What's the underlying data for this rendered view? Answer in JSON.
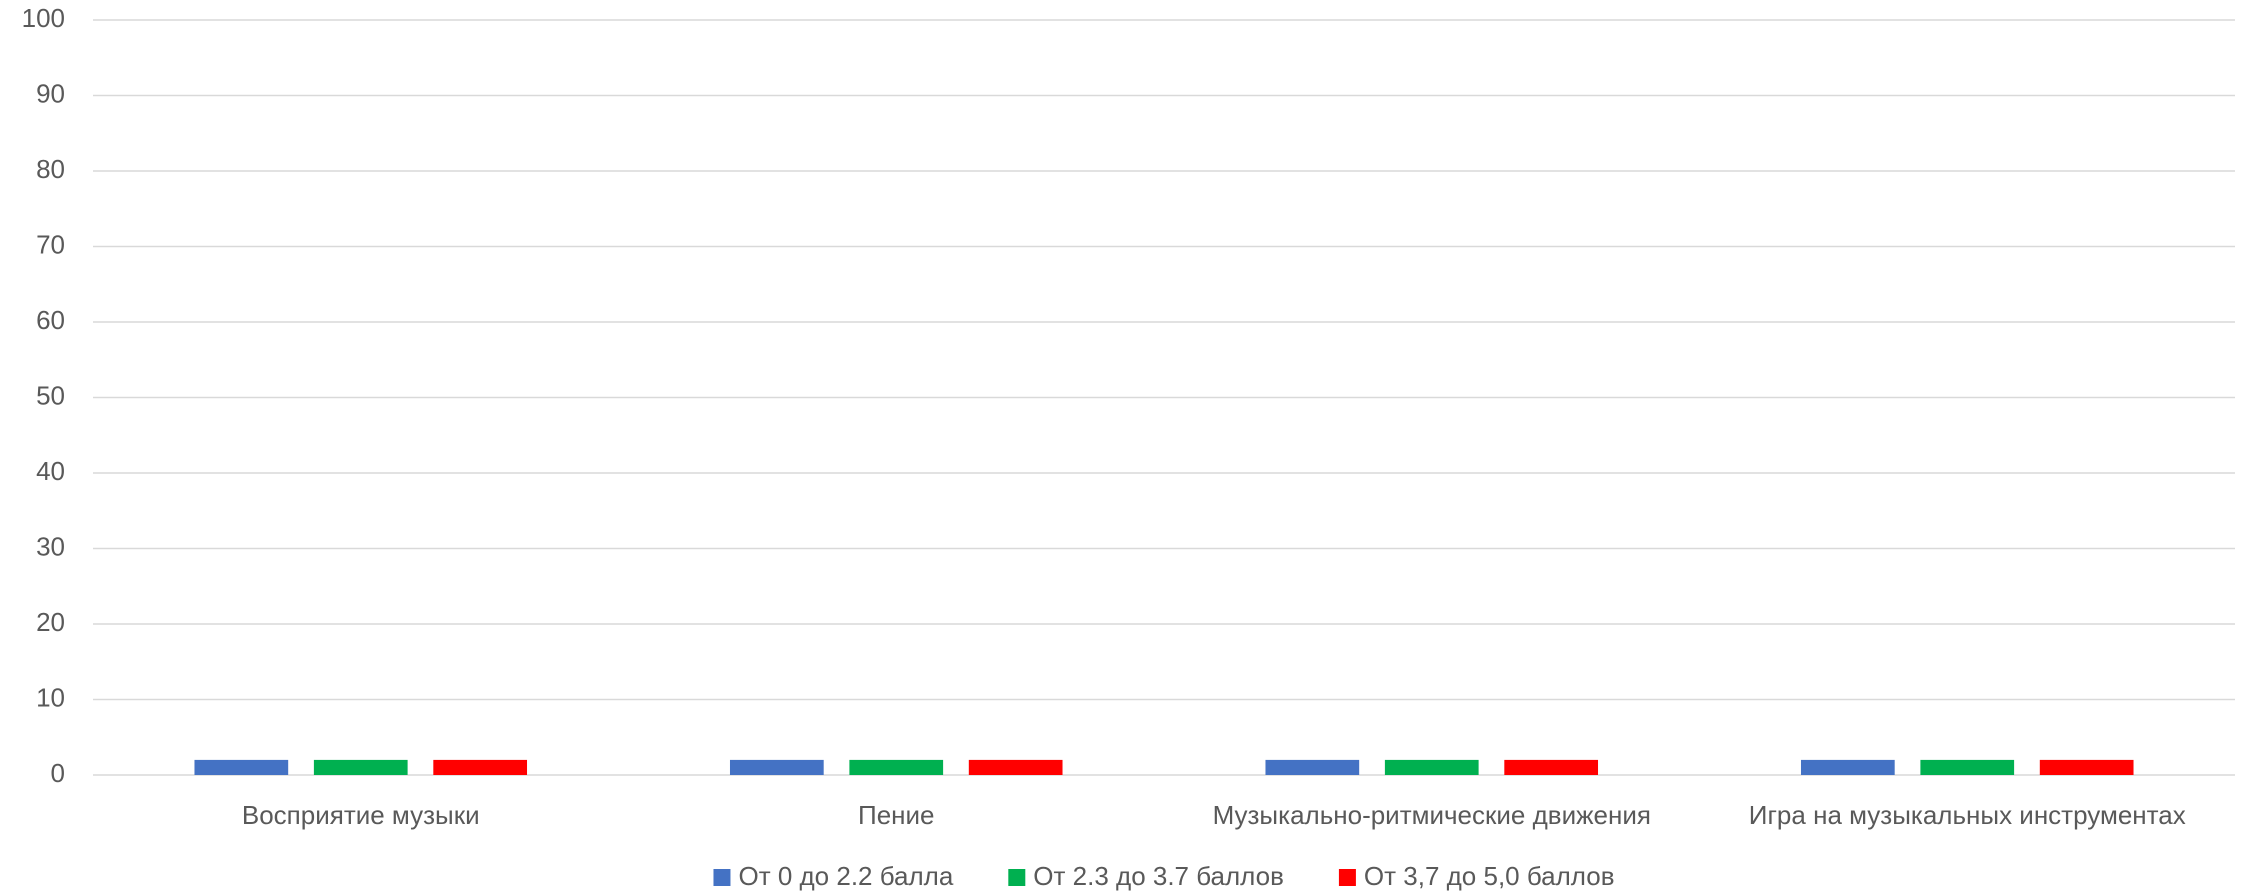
{
  "chart_data": {
    "type": "bar",
    "categories": [
      "Восприятие музыки",
      "Пение",
      "Музыкально-ритмические движения",
      "Игра на музыкальных инструментах"
    ],
    "series": [
      {
        "name": "От 0 до 2.2 балла",
        "color": "#4472c4",
        "values": [
          2,
          2,
          2,
          2
        ]
      },
      {
        "name": "От 2.3 до 3.7 баллов",
        "color": "#00b050",
        "values": [
          2,
          2,
          2,
          2
        ]
      },
      {
        "name": "От 3,7 до 5,0 баллов",
        "color": "#ff0000",
        "values": [
          2,
          2,
          2,
          2
        ]
      }
    ],
    "ylim": [
      0,
      100
    ],
    "yticks": [
      0,
      10,
      20,
      30,
      40,
      50,
      60,
      70,
      80,
      90,
      100
    ],
    "grid": true,
    "legend": "bottom"
  }
}
